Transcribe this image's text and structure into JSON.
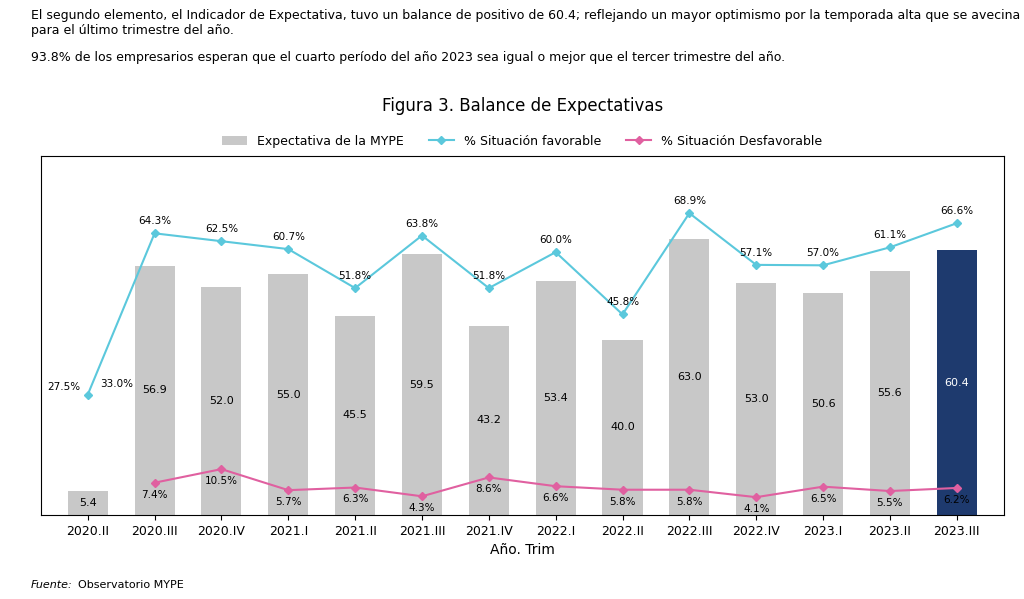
{
  "chart_data": {
    "type": "bar",
    "title": "Figura 3. Balance de Expectativas",
    "x_label": "Año. Trim",
    "categories": [
      "2020.II",
      "2020.III",
      "2020.IV",
      "2021.I",
      "2021.II",
      "2021.III",
      "2021.IV",
      "2022.I",
      "2022.II",
      "2022.III",
      "2022.IV",
      "2023.I",
      "2023.II",
      "2023.III"
    ],
    "series": [
      {
        "name": "Expectativa de la MYPE",
        "type": "bar",
        "colors": [
          "#c8c8c8",
          "#c8c8c8",
          "#c8c8c8",
          "#c8c8c8",
          "#c8c8c8",
          "#c8c8c8",
          "#c8c8c8",
          "#c8c8c8",
          "#c8c8c8",
          "#c8c8c8",
          "#c8c8c8",
          "#c8c8c8",
          "#c8c8c8",
          "#1e3a6e"
        ],
        "values": [
          5.4,
          56.9,
          52.0,
          55.0,
          45.5,
          59.5,
          43.2,
          53.4,
          40.0,
          63.0,
          53.0,
          50.6,
          55.6,
          60.4
        ],
        "value_labels": [
          "5.4",
          "56.9",
          "52.0",
          "55.0",
          "45.5",
          "59.5",
          "43.2",
          "53.4",
          "40.0",
          "63.0",
          "53.0",
          "50.6",
          "55.6",
          "60.4"
        ]
      },
      {
        "name": "% Situación favorable",
        "type": "line",
        "color": "#5bc8dc",
        "marker": "D",
        "values": [
          27.5,
          64.3,
          62.5,
          60.7,
          51.8,
          63.8,
          51.8,
          60.0,
          45.8,
          68.9,
          57.1,
          57.0,
          61.1,
          66.6
        ],
        "value_labels": [
          "27.5%",
          "64.3%",
          "62.5%",
          "60.7%",
          "51.8%",
          "63.8%",
          "51.8%",
          "60.0%",
          "45.8%",
          "68.9%",
          "57.1%",
          "57.0%",
          "61.1%",
          "66.6%"
        ]
      },
      {
        "name": "% Situación Desfavorable",
        "type": "line",
        "color": "#e060a0",
        "marker": "D",
        "values": [
          null,
          7.4,
          10.5,
          5.7,
          6.3,
          4.3,
          8.6,
          6.6,
          5.8,
          5.8,
          4.1,
          6.5,
          5.5,
          6.2
        ],
        "value_labels": [
          null,
          "7.4%",
          "10.5%",
          "5.7%",
          "6.3%",
          "4.3%",
          "8.6%",
          "6.6%",
          "5.8%",
          "5.8%",
          "4.1%",
          "6.5%",
          "5.5%",
          "6.2%"
        ]
      }
    ],
    "annotations": [
      "El segundo elemento, el Indicador de Expectativa, tuvo un balance de positivo de 60.4; reflejando un mayor optimismo por la temporada alta que se avecina para el último trimestre del año.",
      "93.8% de los empresarios esperan que el cuarto período del año 2023 sea igual o mejor que el tercer trimestre del año.",
      "33.0%",
      "Fuente:",
      "Observatorio MYPE"
    ],
    "ylim": [
      0,
      82
    ],
    "yticks": [],
    "tick_labels": "x",
    "data_labels": true,
    "legend": "upper center"
  }
}
